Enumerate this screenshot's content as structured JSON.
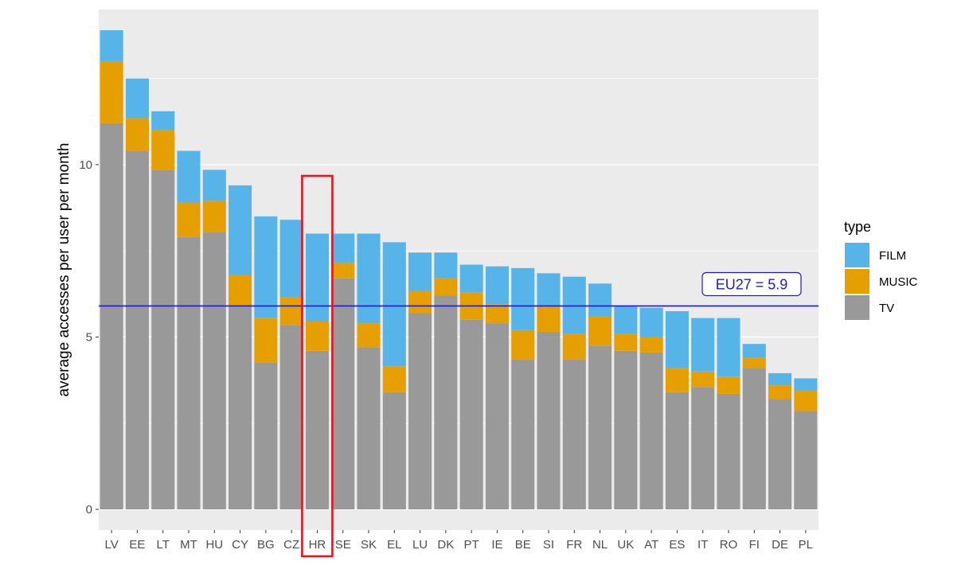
{
  "chart_data": {
    "type": "bar",
    "stacked": true,
    "ylabel": "average accesses per user per month",
    "xlabel": "",
    "ylim": [
      -0.6,
      14.5
    ],
    "yticks": [
      0,
      5,
      10
    ],
    "grid": true,
    "legend": {
      "title": "type",
      "placement": "right"
    },
    "categories": [
      "LV",
      "EE",
      "LT",
      "MT",
      "HU",
      "CY",
      "BG",
      "CZ",
      "HR",
      "SE",
      "SK",
      "EL",
      "LU",
      "DK",
      "PT",
      "IE",
      "BE",
      "SI",
      "FR",
      "NL",
      "UK",
      "AT",
      "ES",
      "IT",
      "RO",
      "FI",
      "DE",
      "PL"
    ],
    "series": [
      {
        "name": "TV",
        "color": "#999999",
        "values": [
          11.2,
          10.4,
          9.85,
          7.9,
          8.05,
          5.9,
          4.25,
          5.35,
          4.6,
          6.7,
          4.7,
          3.4,
          5.7,
          6.2,
          5.5,
          5.4,
          4.35,
          5.15,
          4.35,
          4.75,
          4.6,
          4.55,
          3.4,
          3.55,
          3.35,
          4.1,
          3.2,
          2.85
        ]
      },
      {
        "name": "MUSIC",
        "color": "#e69f00",
        "values": [
          1.8,
          0.95,
          1.15,
          1.0,
          0.9,
          0.9,
          1.3,
          0.8,
          0.85,
          0.45,
          0.7,
          0.75,
          0.65,
          0.5,
          0.8,
          0.55,
          0.85,
          0.75,
          0.75,
          0.85,
          0.5,
          0.45,
          0.7,
          0.45,
          0.5,
          0.3,
          0.4,
          0.6
        ]
      },
      {
        "name": "FILM",
        "color": "#56b4e9",
        "values": [
          0.9,
          1.15,
          0.55,
          1.5,
          0.9,
          2.6,
          2.95,
          2.25,
          2.55,
          0.85,
          2.6,
          3.6,
          1.1,
          0.75,
          0.8,
          1.1,
          1.8,
          0.95,
          1.65,
          0.95,
          0.8,
          0.85,
          1.65,
          1.55,
          1.7,
          0.4,
          0.35,
          0.35
        ]
      }
    ],
    "reference_line": {
      "value": 5.9,
      "label": "EU27 = 5.9",
      "color": "#1c1ccc"
    },
    "highlight": {
      "category": "HR",
      "color": "#e8141d"
    },
    "plot_background": "#ebebeb",
    "grid_color": "#ffffff"
  }
}
